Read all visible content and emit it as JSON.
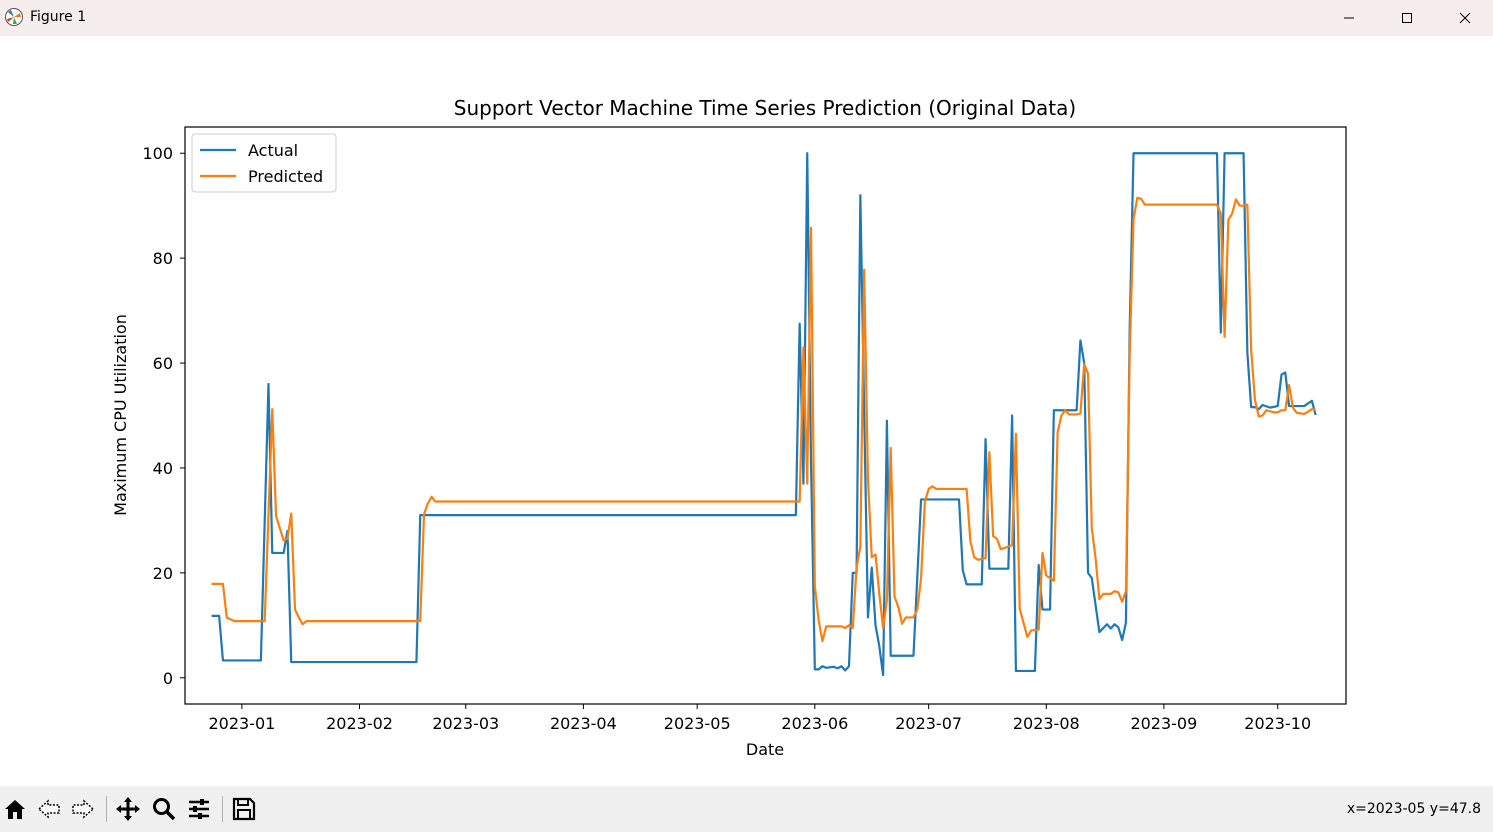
{
  "window": {
    "title": "Figure 1"
  },
  "status": {
    "coords": "x=2023-05 y=47.8"
  },
  "toolbar": {
    "tools": [
      "home-icon",
      "back-icon",
      "forward-icon",
      "pan-icon",
      "zoom-icon",
      "configure-subplots-icon",
      "save-icon"
    ]
  },
  "chart_data": {
    "type": "line",
    "title": "Support Vector Machine Time Series Prediction (Original Data)",
    "xlabel": "Date",
    "ylabel": "Maximum CPU Utilization",
    "xlim": [
      "2022-12-17",
      "2023-10-19"
    ],
    "ylim": [
      -5,
      105
    ],
    "x_ticks": [
      "2023-01-01",
      "2023-02-01",
      "2023-03-01",
      "2023-04-01",
      "2023-05-01",
      "2023-06-01",
      "2023-07-01",
      "2023-08-01",
      "2023-09-01",
      "2023-10-01"
    ],
    "x_tick_labels": [
      "2023-01",
      "2023-02",
      "2023-03",
      "2023-04",
      "2023-05",
      "2023-06",
      "2023-07",
      "2023-08",
      "2023-09",
      "2023-10"
    ],
    "y_ticks": [
      0,
      20,
      40,
      60,
      80,
      100
    ],
    "y_tick_labels": [
      "0",
      "20",
      "40",
      "60",
      "80",
      "100"
    ],
    "grid": false,
    "legend_position": "upper-left",
    "series": [
      {
        "name": "Actual",
        "color": "#1f77b4",
        "points": [
          [
            "2022-12-24",
            11.8
          ],
          [
            "2022-12-26",
            11.8
          ],
          [
            "2022-12-27",
            3.3
          ],
          [
            "2023-01-03",
            3.3
          ],
          [
            "2023-01-06",
            3.3
          ],
          [
            "2023-01-08",
            56
          ],
          [
            "2023-01-09",
            23.8
          ],
          [
            "2023-01-12",
            23.8
          ],
          [
            "2023-01-13",
            28
          ],
          [
            "2023-01-14",
            3
          ],
          [
            "2023-01-20",
            3
          ],
          [
            "2023-02-01",
            3
          ],
          [
            "2023-02-15",
            3
          ],
          [
            "2023-02-16",
            3
          ],
          [
            "2023-02-17",
            31
          ],
          [
            "2023-03-01",
            31
          ],
          [
            "2023-04-01",
            31
          ],
          [
            "2023-05-01",
            31
          ],
          [
            "2023-05-27",
            31
          ],
          [
            "2023-05-28",
            67.5
          ],
          [
            "2023-05-29",
            37
          ],
          [
            "2023-05-30",
            100
          ],
          [
            "2023-05-31",
            41
          ],
          [
            "2023-06-01",
            1.6
          ],
          [
            "2023-06-02",
            1.6
          ],
          [
            "2023-06-03",
            2.2
          ],
          [
            "2023-06-04",
            1.9
          ],
          [
            "2023-06-06",
            2.1
          ],
          [
            "2023-06-07",
            1.8
          ],
          [
            "2023-06-08",
            2.2
          ],
          [
            "2023-06-09",
            1.4
          ],
          [
            "2023-06-10",
            2.2
          ],
          [
            "2023-06-11",
            20
          ],
          [
            "2023-06-12",
            20
          ],
          [
            "2023-06-13",
            92
          ],
          [
            "2023-06-14",
            51
          ],
          [
            "2023-06-15",
            11.5
          ],
          [
            "2023-06-16",
            21
          ],
          [
            "2023-06-17",
            10
          ],
          [
            "2023-06-18",
            6
          ],
          [
            "2023-06-19",
            0.5
          ],
          [
            "2023-06-20",
            49
          ],
          [
            "2023-06-21",
            4.2
          ],
          [
            "2023-06-26",
            4.2
          ],
          [
            "2023-06-27",
            4.2
          ],
          [
            "2023-06-29",
            34
          ],
          [
            "2023-07-04",
            34
          ],
          [
            "2023-07-09",
            34
          ],
          [
            "2023-07-10",
            20.5
          ],
          [
            "2023-07-11",
            17.8
          ],
          [
            "2023-07-15",
            17.8
          ],
          [
            "2023-07-16",
            45.5
          ],
          [
            "2023-07-17",
            20.8
          ],
          [
            "2023-07-22",
            20.8
          ],
          [
            "2023-07-23",
            50
          ],
          [
            "2023-07-24",
            1.3
          ],
          [
            "2023-07-29",
            1.3
          ],
          [
            "2023-07-30",
            21.5
          ],
          [
            "2023-07-31",
            13
          ],
          [
            "2023-08-02",
            13
          ],
          [
            "2023-08-03",
            51
          ],
          [
            "2023-08-09",
            51
          ],
          [
            "2023-08-10",
            64.3
          ],
          [
            "2023-08-11",
            60
          ],
          [
            "2023-08-12",
            20
          ],
          [
            "2023-08-13",
            19
          ],
          [
            "2023-08-15",
            8.7
          ],
          [
            "2023-08-17",
            10.2
          ],
          [
            "2023-08-18",
            9.4
          ],
          [
            "2023-08-19",
            10.2
          ],
          [
            "2023-08-20",
            9.6
          ],
          [
            "2023-08-21",
            7.2
          ],
          [
            "2023-08-22",
            10.5
          ],
          [
            "2023-08-23",
            67
          ],
          [
            "2023-08-24",
            100
          ],
          [
            "2023-09-01",
            100
          ],
          [
            "2023-09-10",
            100
          ],
          [
            "2023-09-15",
            100
          ],
          [
            "2023-09-16",
            65.8
          ],
          [
            "2023-09-17",
            100
          ],
          [
            "2023-09-22",
            100
          ],
          [
            "2023-09-23",
            62
          ],
          [
            "2023-09-24",
            51.6
          ],
          [
            "2023-09-25",
            51.6
          ],
          [
            "2023-09-26",
            51.2
          ],
          [
            "2023-09-27",
            52
          ],
          [
            "2023-09-29",
            51.5
          ],
          [
            "2023-10-01",
            51.8
          ],
          [
            "2023-10-02",
            57.8
          ],
          [
            "2023-10-03",
            58.2
          ],
          [
            "2023-10-04",
            51.8
          ],
          [
            "2023-10-08",
            51.8
          ],
          [
            "2023-10-10",
            52.8
          ],
          [
            "2023-10-11",
            50.1
          ]
        ]
      },
      {
        "name": "Predicted",
        "color": "#ff7f0e",
        "points": [
          [
            "2022-12-24",
            17.9
          ],
          [
            "2022-12-27",
            17.9
          ],
          [
            "2022-12-28",
            11.5
          ],
          [
            "2022-12-30",
            10.8
          ],
          [
            "2023-01-01",
            10.8
          ],
          [
            "2023-01-06",
            10.8
          ],
          [
            "2023-01-07",
            10.8
          ],
          [
            "2023-01-09",
            51.2
          ],
          [
            "2023-01-10",
            30.8
          ],
          [
            "2023-01-12",
            26.2
          ],
          [
            "2023-01-13",
            26.5
          ],
          [
            "2023-01-14",
            31.3
          ],
          [
            "2023-01-15",
            13
          ],
          [
            "2023-01-16",
            11.5
          ],
          [
            "2023-01-17",
            10.2
          ],
          [
            "2023-01-18",
            10.8
          ],
          [
            "2023-02-01",
            10.8
          ],
          [
            "2023-02-16",
            10.8
          ],
          [
            "2023-02-17",
            10.8
          ],
          [
            "2023-02-18",
            31.2
          ],
          [
            "2023-02-19",
            33.2
          ],
          [
            "2023-02-20",
            34.5
          ],
          [
            "2023-02-21",
            33.6
          ],
          [
            "2023-03-01",
            33.6
          ],
          [
            "2023-04-01",
            33.6
          ],
          [
            "2023-05-01",
            33.6
          ],
          [
            "2023-05-28",
            33.6
          ],
          [
            "2023-05-29",
            63
          ],
          [
            "2023-05-30",
            37
          ],
          [
            "2023-05-31",
            85.8
          ],
          [
            "2023-06-01",
            17.5
          ],
          [
            "2023-06-02",
            11
          ],
          [
            "2023-06-03",
            7
          ],
          [
            "2023-06-04",
            9.8
          ],
          [
            "2023-06-05",
            9.8
          ],
          [
            "2023-06-08",
            9.8
          ],
          [
            "2023-06-09",
            9.5
          ],
          [
            "2023-06-10",
            10
          ],
          [
            "2023-06-11",
            9.5
          ],
          [
            "2023-06-12",
            21
          ],
          [
            "2023-06-13",
            25
          ],
          [
            "2023-06-14",
            77.8
          ],
          [
            "2023-06-15",
            38
          ],
          [
            "2023-06-16",
            23
          ],
          [
            "2023-06-17",
            23.5
          ],
          [
            "2023-06-18",
            16
          ],
          [
            "2023-06-19",
            9.5
          ],
          [
            "2023-06-20",
            14.8
          ],
          [
            "2023-06-21",
            43.8
          ],
          [
            "2023-06-22",
            15.5
          ],
          [
            "2023-06-23",
            13.5
          ],
          [
            "2023-06-24",
            10.3
          ],
          [
            "2023-06-25",
            11.5
          ],
          [
            "2023-06-27",
            11.5
          ],
          [
            "2023-06-28",
            13
          ],
          [
            "2023-06-29",
            19
          ],
          [
            "2023-06-30",
            33.5
          ],
          [
            "2023-07-01",
            36
          ],
          [
            "2023-07-02",
            36.5
          ],
          [
            "2023-07-03",
            36
          ],
          [
            "2023-07-11",
            36
          ],
          [
            "2023-07-12",
            26
          ],
          [
            "2023-07-13",
            23
          ],
          [
            "2023-07-14",
            22.5
          ],
          [
            "2023-07-16",
            22.8
          ],
          [
            "2023-07-17",
            43
          ],
          [
            "2023-07-18",
            27
          ],
          [
            "2023-07-19",
            26.5
          ],
          [
            "2023-07-20",
            24.5
          ],
          [
            "2023-07-22",
            25
          ],
          [
            "2023-07-23",
            25.3
          ],
          [
            "2023-07-24",
            46.5
          ],
          [
            "2023-07-25",
            13.2
          ],
          [
            "2023-07-26",
            10.5
          ],
          [
            "2023-07-27",
            7.8
          ],
          [
            "2023-07-28",
            9
          ],
          [
            "2023-07-30",
            9.2
          ],
          [
            "2023-07-31",
            23.8
          ],
          [
            "2023-08-01",
            19.5
          ],
          [
            "2023-08-03",
            18.5
          ],
          [
            "2023-08-04",
            46.8
          ],
          [
            "2023-08-05",
            50
          ],
          [
            "2023-08-06",
            51
          ],
          [
            "2023-08-07",
            50.2
          ],
          [
            "2023-08-09",
            50.2
          ],
          [
            "2023-08-10",
            50.4
          ],
          [
            "2023-08-11",
            59.8
          ],
          [
            "2023-08-12",
            58
          ],
          [
            "2023-08-13",
            28.5
          ],
          [
            "2023-08-14",
            22.8
          ],
          [
            "2023-08-15",
            15
          ],
          [
            "2023-08-16",
            16
          ],
          [
            "2023-08-18",
            16
          ],
          [
            "2023-08-19",
            16.5
          ],
          [
            "2023-08-20",
            16.3
          ],
          [
            "2023-08-21",
            14.5
          ],
          [
            "2023-08-22",
            16.5
          ],
          [
            "2023-08-23",
            62
          ],
          [
            "2023-08-24",
            87.5
          ],
          [
            "2023-08-25",
            91.5
          ],
          [
            "2023-08-26",
            91.3
          ],
          [
            "2023-08-27",
            90.2
          ],
          [
            "2023-09-01",
            90.2
          ],
          [
            "2023-09-15",
            90.2
          ],
          [
            "2023-09-16",
            88.5
          ],
          [
            "2023-09-17",
            65
          ],
          [
            "2023-09-18",
            87.3
          ],
          [
            "2023-09-19",
            88.5
          ],
          [
            "2023-09-20",
            91.2
          ],
          [
            "2023-09-21",
            90
          ],
          [
            "2023-09-22",
            90
          ],
          [
            "2023-09-23",
            90.2
          ],
          [
            "2023-09-24",
            62.5
          ],
          [
            "2023-09-25",
            53
          ],
          [
            "2023-09-26",
            49.8
          ],
          [
            "2023-09-27",
            50
          ],
          [
            "2023-09-28",
            51
          ],
          [
            "2023-09-30",
            50.6
          ],
          [
            "2023-10-01",
            50.6
          ],
          [
            "2023-10-02",
            51
          ],
          [
            "2023-10-03",
            51
          ],
          [
            "2023-10-04",
            55.8
          ],
          [
            "2023-10-05",
            51.5
          ],
          [
            "2023-10-06",
            50.5
          ],
          [
            "2023-10-08",
            50.3
          ],
          [
            "2023-10-10",
            51.2
          ],
          [
            "2023-10-11",
            51.1
          ]
        ]
      }
    ]
  }
}
